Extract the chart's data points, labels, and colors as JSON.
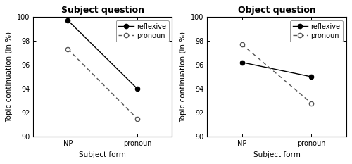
{
  "left": {
    "title": "Subject question",
    "reflexive": [
      99.7,
      94.0
    ],
    "pronoun": [
      97.3,
      91.5
    ],
    "xlabel": "Subject form",
    "ylabel": "Topic continuation (in %)",
    "ylim": [
      90,
      100
    ],
    "yticks": [
      90,
      92,
      94,
      96,
      98,
      100
    ],
    "xticks": [
      "NP",
      "pronoun"
    ]
  },
  "right": {
    "title": "Object question",
    "reflexive": [
      96.2,
      95.0
    ],
    "pronoun": [
      97.7,
      92.8
    ],
    "xlabel": "Subject form",
    "ylabel": "Topic continuation (in %)",
    "ylim": [
      90,
      100
    ],
    "yticks": [
      90,
      92,
      94,
      96,
      98,
      100
    ],
    "xticks": [
      "NP",
      "pronoun"
    ]
  },
  "legend_labels": [
    "reflexive",
    "pronoun"
  ],
  "line_color_solid": "#000000",
  "line_color_dashed": "#555555",
  "marker_filled": "o",
  "marker_open": "o",
  "bg_color": "#ffffff",
  "font_size_title": 9,
  "font_size_labels": 7.5,
  "font_size_ticks": 7,
  "font_size_legend": 7
}
